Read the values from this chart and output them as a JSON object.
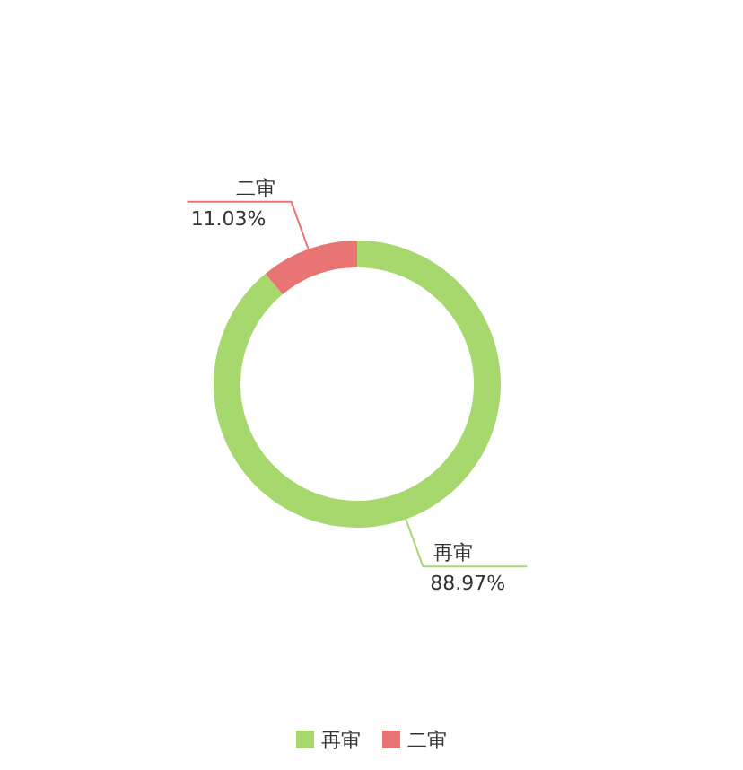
{
  "chart_data": {
    "type": "donut",
    "categories": [
      "再审",
      "二审"
    ],
    "values": [
      88.97,
      11.03
    ],
    "colors": [
      "#a6d86e",
      "#e87474"
    ],
    "value_labels": [
      "88.97%",
      "11.03%"
    ],
    "legend": "bottom"
  }
}
